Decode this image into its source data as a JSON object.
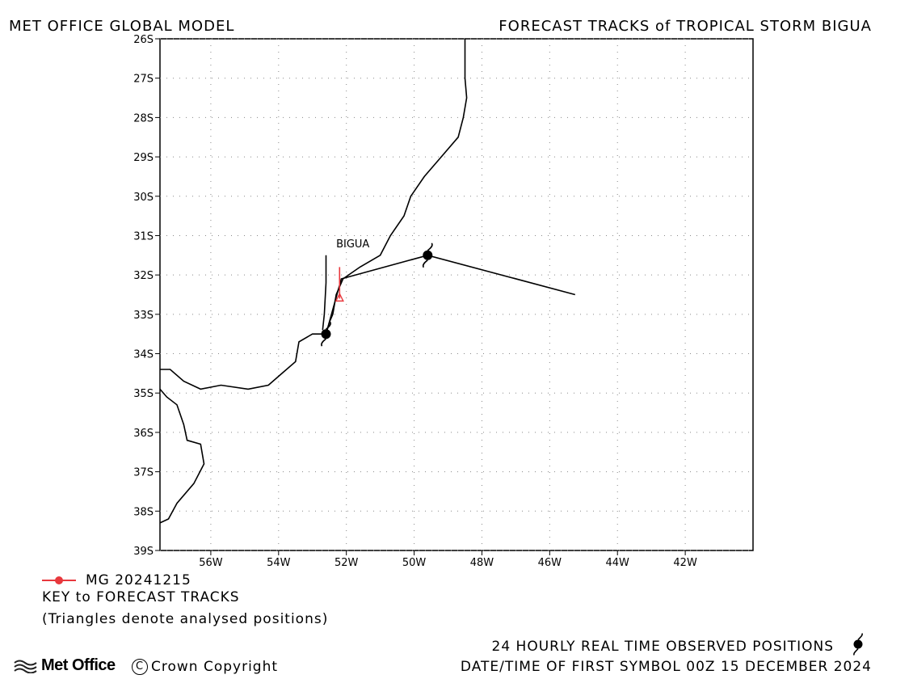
{
  "header": {
    "left": "MET OFFICE GLOBAL MODEL",
    "right": "FORECAST TRACKS of TROPICAL STORM BIGUA"
  },
  "map": {
    "lon_range": [
      -57.5,
      -40.0
    ],
    "lat_range": [
      -39,
      -26
    ],
    "lon_ticks": [
      {
        "value": -56,
        "label": "56W"
      },
      {
        "value": -54,
        "label": "54W"
      },
      {
        "value": -52,
        "label": "52W"
      },
      {
        "value": -50,
        "label": "50W"
      },
      {
        "value": -48,
        "label": "48W"
      },
      {
        "value": -46,
        "label": "46W"
      },
      {
        "value": -44,
        "label": "44W"
      },
      {
        "value": -42,
        "label": "42W"
      }
    ],
    "lat_ticks": [
      {
        "value": -26,
        "label": "26S"
      },
      {
        "value": -27,
        "label": "27S"
      },
      {
        "value": -28,
        "label": "28S"
      },
      {
        "value": -29,
        "label": "29S"
      },
      {
        "value": -30,
        "label": "30S"
      },
      {
        "value": -31,
        "label": "31S"
      },
      {
        "value": -32,
        "label": "32S"
      },
      {
        "value": -33,
        "label": "33S"
      },
      {
        "value": -34,
        "label": "34S"
      },
      {
        "value": -35,
        "label": "35S"
      },
      {
        "value": -36,
        "label": "36S"
      },
      {
        "value": -37,
        "label": "37S"
      },
      {
        "value": -38,
        "label": "38S"
      },
      {
        "value": -39,
        "label": "39S"
      }
    ],
    "coastlines": [
      [
        [
          -48.5,
          -26
        ],
        [
          -48.5,
          -27
        ],
        [
          -48.45,
          -27.5
        ],
        [
          -48.55,
          -28
        ],
        [
          -48.7,
          -28.5
        ],
        [
          -49.2,
          -29
        ],
        [
          -49.7,
          -29.5
        ],
        [
          -50.1,
          -30
        ],
        [
          -50.3,
          -30.5
        ],
        [
          -50.7,
          -31
        ],
        [
          -51.0,
          -31.5
        ],
        [
          -51.6,
          -31.8
        ],
        [
          -52.1,
          -32.1
        ],
        [
          -52.3,
          -32.5
        ],
        [
          -52.4,
          -33.0
        ],
        [
          -52.5,
          -33.2
        ],
        [
          -52.6,
          -33.5
        ],
        [
          -53.0,
          -33.5
        ],
        [
          -53.4,
          -33.7
        ],
        [
          -53.5,
          -34.2
        ],
        [
          -53.9,
          -34.5
        ],
        [
          -54.3,
          -34.8
        ],
        [
          -54.9,
          -34.9
        ],
        [
          -55.7,
          -34.8
        ],
        [
          -56.3,
          -34.9
        ],
        [
          -56.8,
          -34.7
        ],
        [
          -57.2,
          -34.4
        ],
        [
          -57.5,
          -34.4
        ]
      ],
      [
        [
          -57.5,
          -34.9
        ],
        [
          -57.3,
          -35.1
        ],
        [
          -57.0,
          -35.3
        ],
        [
          -56.8,
          -35.8
        ],
        [
          -56.7,
          -36.2
        ],
        [
          -56.3,
          -36.3
        ],
        [
          -56.2,
          -36.8
        ],
        [
          -56.5,
          -37.3
        ],
        [
          -57.0,
          -37.8
        ],
        [
          -57.25,
          -38.2
        ],
        [
          -57.5,
          -38.3
        ]
      ],
      [
        [
          -52.6,
          -31.5
        ],
        [
          -52.6,
          -32.2
        ],
        [
          -52.65,
          -33.0
        ],
        [
          -52.7,
          -33.4
        ]
      ]
    ],
    "observed_track": [
      [
        -52.6,
        -33.5
      ],
      [
        -52.15,
        -32.1
      ],
      [
        -49.6,
        -31.5
      ],
      [
        -45.25,
        -32.5
      ]
    ],
    "observed_symbols": [
      [
        -52.6,
        -33.5
      ],
      [
        -49.6,
        -31.5
      ]
    ],
    "forecast_track": [
      [
        -52.2,
        -31.8
      ],
      [
        -52.2,
        -32.6
      ]
    ],
    "storm_label": {
      "text": "BIGUA",
      "lon": -52.3,
      "lat": -31.2
    },
    "colors": {
      "coast": "#000000",
      "track": "#000000",
      "forecast": "#e8383d",
      "grid": "#888888"
    }
  },
  "key": {
    "entry_label": "MG 20241215",
    "title": "KEY to FORECAST TRACKS",
    "note": "(Triangles denote analysed positions)"
  },
  "footer": {
    "observed_label": "24 HOURLY REAL TIME OBSERVED POSITIONS",
    "first_symbol": "DATE/TIME OF FIRST SYMBOL 00Z 15 DECEMBER 2024",
    "logo_text": "Met Office",
    "copyright": "Crown Copyright"
  }
}
